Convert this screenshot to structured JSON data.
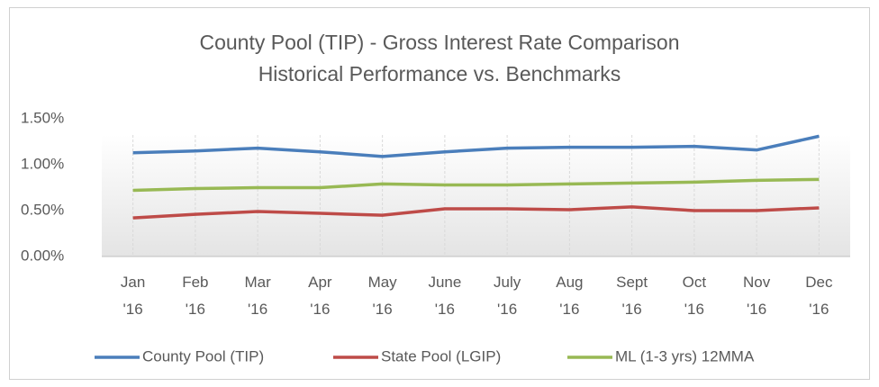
{
  "chart_data": {
    "type": "line",
    "title": "County Pool (TIP) - Gross Interest Rate Comparison",
    "subtitle": "Historical Performance vs. Benchmarks",
    "categories": [
      "Jan '16",
      "Feb '16",
      "Mar '16",
      "Apr '16",
      "May '16",
      "June '16",
      "July '16",
      "Aug '16",
      "Sept '16",
      "Oct '16",
      "Nov '16",
      "Dec '16"
    ],
    "series": [
      {
        "name": "County Pool (TIP)",
        "color": "#4a7ebb",
        "values": [
          1.13,
          1.15,
          1.18,
          1.14,
          1.09,
          1.14,
          1.18,
          1.19,
          1.19,
          1.2,
          1.16,
          1.31
        ]
      },
      {
        "name": "State Pool (LGIP)",
        "color": "#be4b48",
        "values": [
          0.42,
          0.46,
          0.49,
          0.47,
          0.45,
          0.52,
          0.52,
          0.51,
          0.54,
          0.5,
          0.5,
          0.53
        ]
      },
      {
        "name": "ML (1-3 yrs) 12MMA",
        "color": "#98b954",
        "values": [
          0.72,
          0.74,
          0.75,
          0.75,
          0.79,
          0.78,
          0.78,
          0.79,
          0.8,
          0.81,
          0.83,
          0.84
        ]
      }
    ],
    "ylim": [
      0,
      1.5
    ],
    "yticks": [
      {
        "value": 0,
        "label": "0.00%"
      },
      {
        "value": 0.5,
        "label": "0.50%"
      },
      {
        "value": 1,
        "label": "1.00%"
      },
      {
        "value": 1.5,
        "label": "1.50%"
      }
    ],
    "grid": "x",
    "legend": "bottom"
  }
}
